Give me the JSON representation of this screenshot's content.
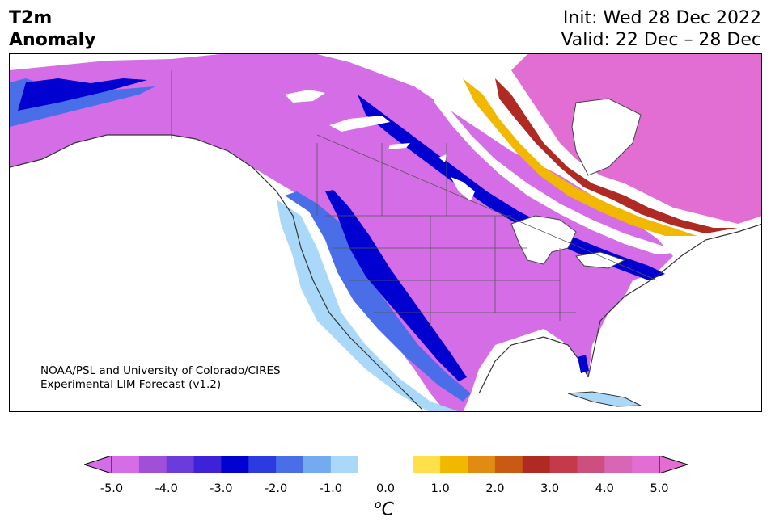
{
  "title": {
    "left_line1": "T2m",
    "left_line2": "Anomaly",
    "right_line1": "Init: Wed 28 Dec 2022",
    "right_line2": "Valid: 22 Dec – 28 Dec"
  },
  "credit": {
    "line1": "NOAA/PSL and University of Colorado/CIRES",
    "line2": "Experimental LIM Forecast (v1.2)"
  },
  "colorbar": {
    "ticks": [
      "-5.0",
      "-4.0",
      "-3.0",
      "-2.0",
      "-1.0",
      "0.0",
      "1.0",
      "2.0",
      "3.0",
      "4.0",
      "5.0"
    ],
    "unit_sup": "o",
    "unit_main": "C",
    "colors": [
      "#d56ee6",
      "#a14fd8",
      "#6b3bdc",
      "#3d22d8",
      "#0000d0",
      "#2b3be0",
      "#4a6de8",
      "#74aaf0",
      "#a9d8f8",
      "#ffffff",
      "#ffffff",
      "#fde04a",
      "#f2b800",
      "#e08c10",
      "#c85a14",
      "#b02a24",
      "#c43a4a",
      "#cc4f80",
      "#d866b4",
      "#e26dd3"
    ],
    "extend_min_color": "#d56ee6",
    "extend_max_color": "#e26dd3"
  },
  "map": {
    "ocean_color": "#ffffff",
    "region_colors": {
      "strong_cold": "#d56ee6",
      "strong_warm": "#e26dd3"
    }
  }
}
